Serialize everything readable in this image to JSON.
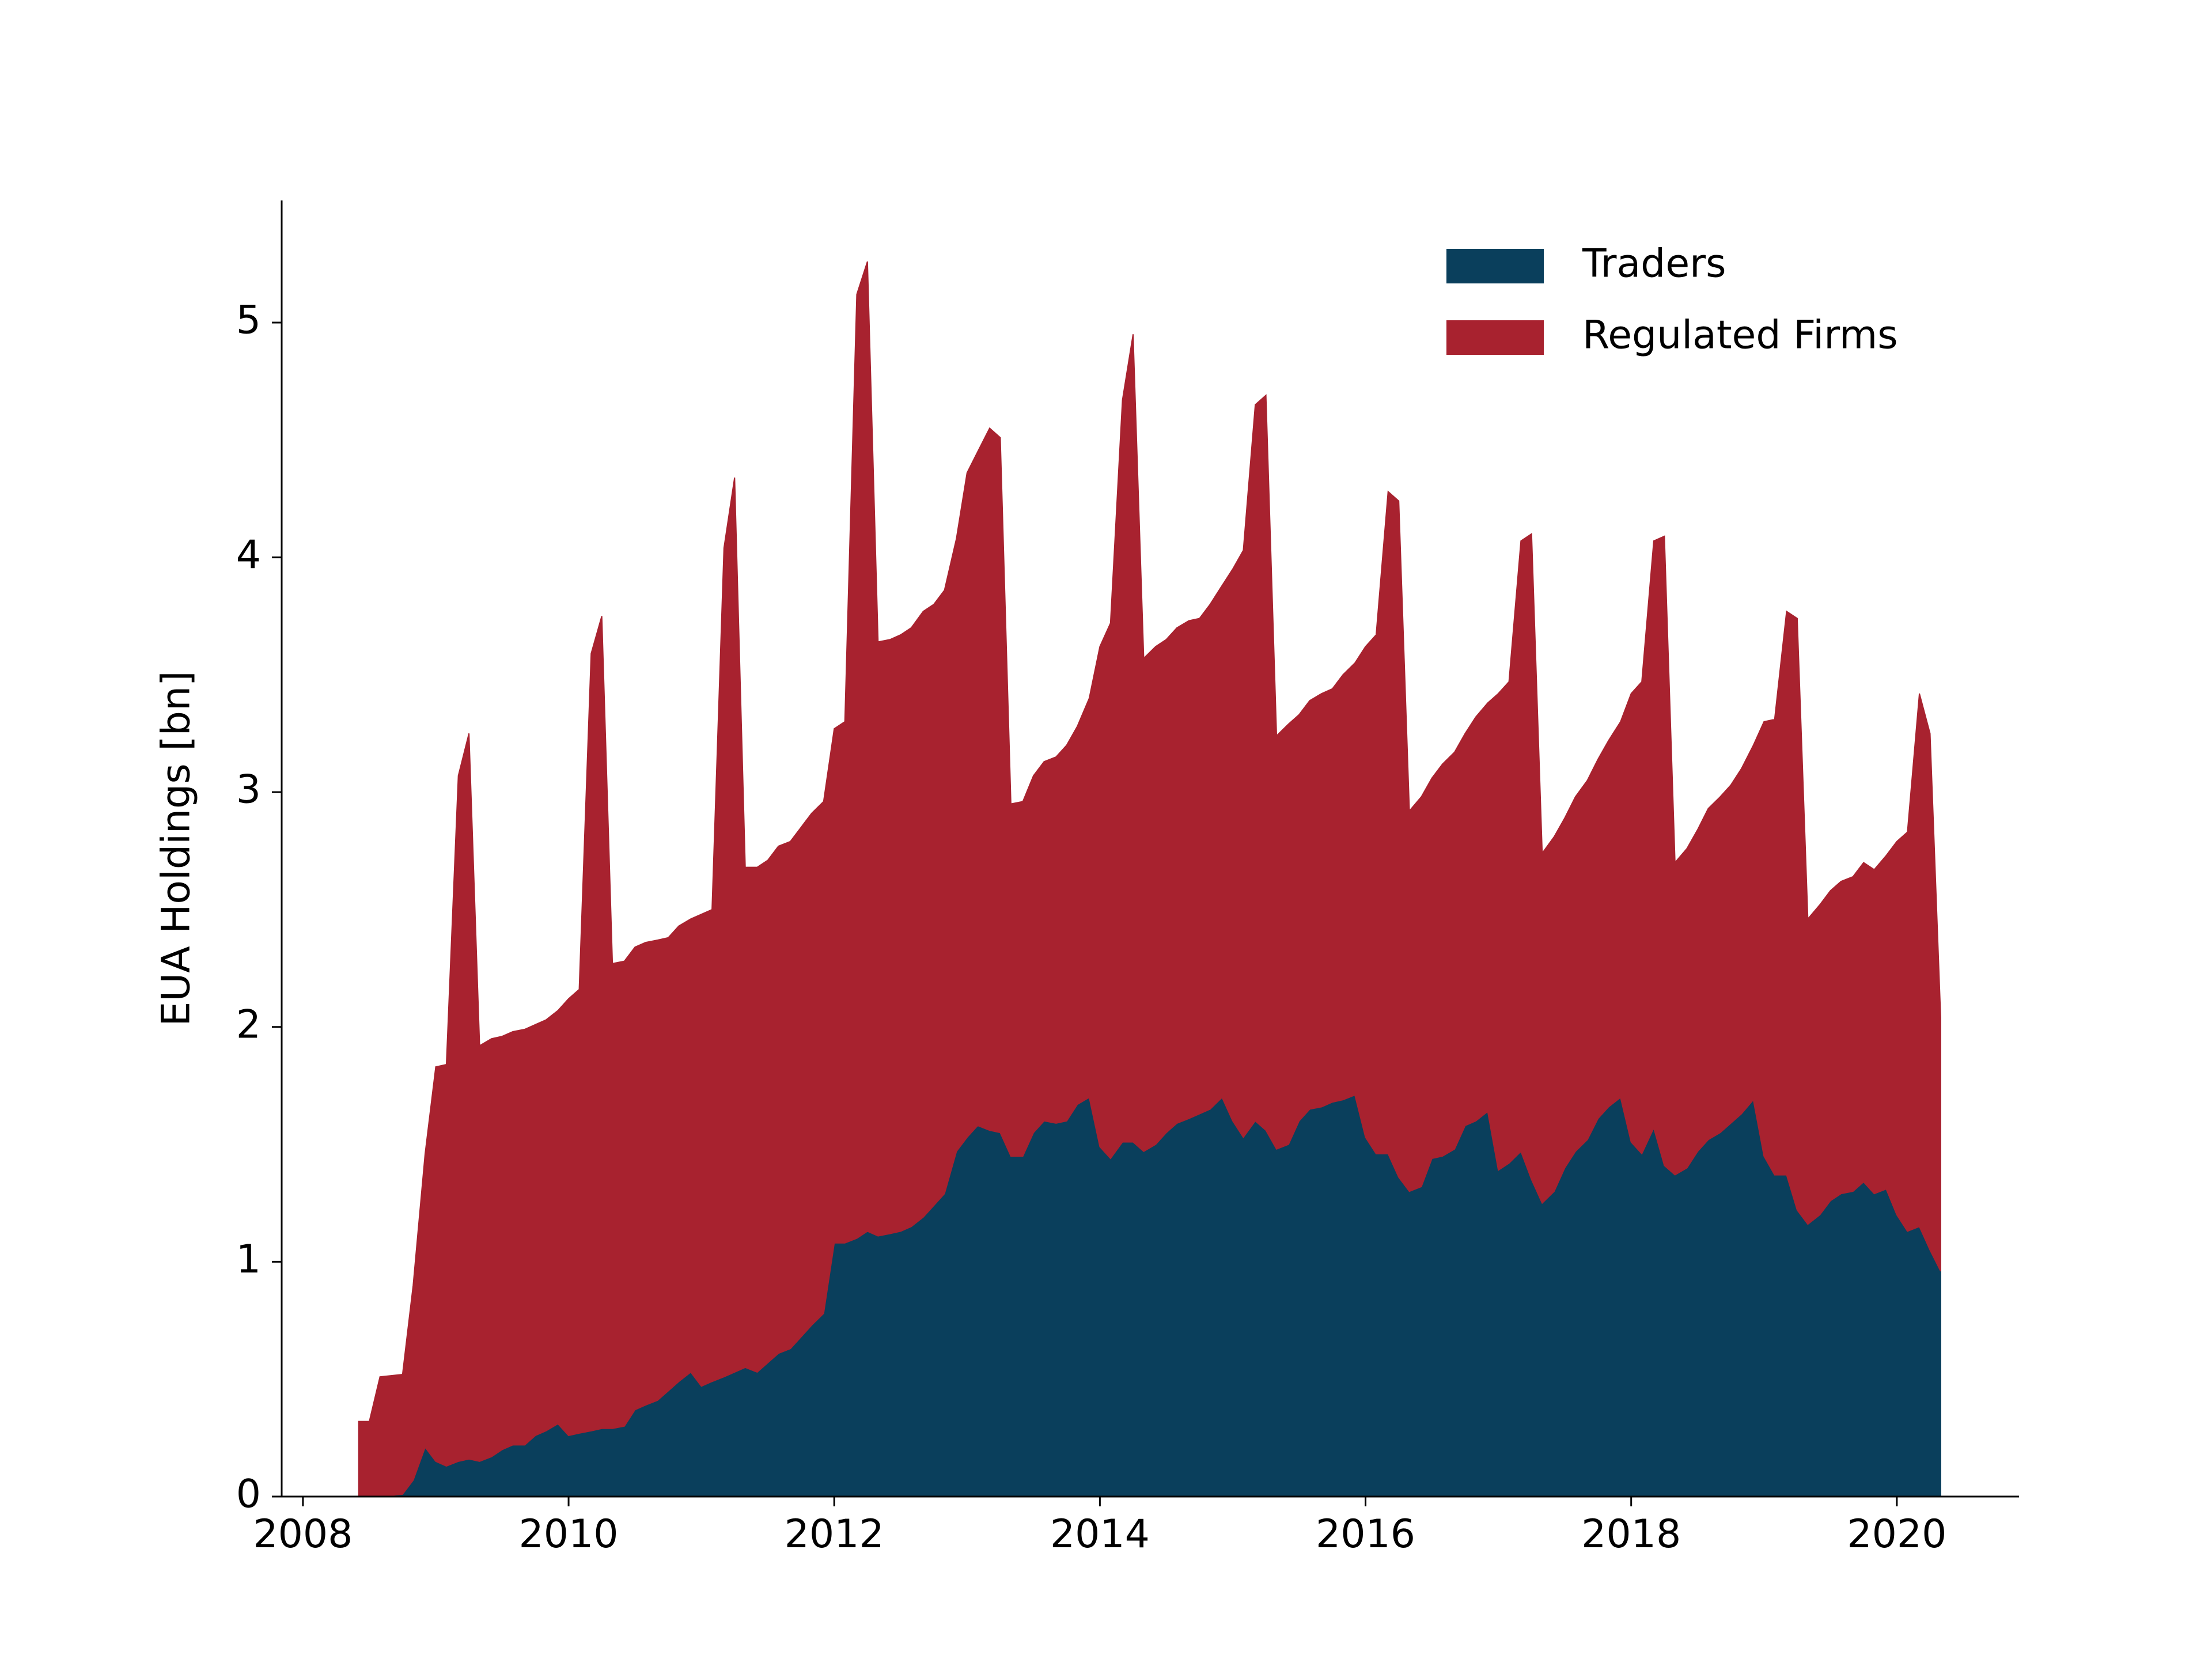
{
  "chart_data": {
    "type": "stackplot",
    "ylabel": "EUA Holdings [bn]",
    "x": [
      2008.42,
      2008.5,
      2008.58,
      2008.75,
      2008.83,
      2008.92,
      2009.0,
      2009.08,
      2009.17,
      2009.25,
      2009.33,
      2009.42,
      2009.5,
      2009.58,
      2009.67,
      2009.75,
      2009.83,
      2009.92,
      2010.0,
      2010.08,
      2010.17,
      2010.25,
      2010.33,
      2010.42,
      2010.5,
      2010.58,
      2010.67,
      2010.75,
      2010.83,
      2010.92,
      2011.0,
      2011.08,
      2011.17,
      2011.25,
      2011.33,
      2011.42,
      2011.5,
      2011.58,
      2011.67,
      2011.75,
      2011.83,
      2011.92,
      2012.0,
      2012.08,
      2012.17,
      2012.25,
      2012.33,
      2012.42,
      2012.5,
      2012.58,
      2012.67,
      2012.75,
      2012.83,
      2012.92,
      2013.0,
      2013.08,
      2013.17,
      2013.25,
      2013.33,
      2013.42,
      2013.5,
      2013.58,
      2013.67,
      2013.75,
      2013.83,
      2013.92,
      2014.0,
      2014.08,
      2014.17,
      2014.25,
      2014.33,
      2014.42,
      2014.5,
      2014.58,
      2014.67,
      2014.75,
      2014.83,
      2014.92,
      2015.0,
      2015.08,
      2015.17,
      2015.25,
      2015.33,
      2015.42,
      2015.5,
      2015.58,
      2015.67,
      2015.75,
      2015.83,
      2015.92,
      2016.0,
      2016.08,
      2016.17,
      2016.25,
      2016.33,
      2016.42,
      2016.5,
      2016.58,
      2016.67,
      2016.75,
      2016.83,
      2016.92,
      2017.0,
      2017.08,
      2017.17,
      2017.25,
      2017.33,
      2017.42,
      2017.5,
      2017.58,
      2017.67,
      2017.75,
      2017.83,
      2017.92,
      2018.0,
      2018.08,
      2018.17,
      2018.25,
      2018.33,
      2018.42,
      2018.5,
      2018.58,
      2018.67,
      2018.75,
      2018.83,
      2018.92,
      2019.0,
      2019.08,
      2019.17,
      2019.25,
      2019.33,
      2019.42,
      2019.5,
      2019.58,
      2019.67,
      2019.75,
      2019.83,
      2019.92,
      2020.0,
      2020.08,
      2020.17,
      2020.25,
      2020.33
    ],
    "series": [
      {
        "name": "Traders",
        "color": "#0a3f5c",
        "values": [
          0,
          0,
          0,
          0.01,
          0.07,
          0.21,
          0.15,
          0.13,
          0.15,
          0.16,
          0.15,
          0.17,
          0.2,
          0.22,
          0.22,
          0.26,
          0.28,
          0.31,
          0.26,
          0.27,
          0.28,
          0.29,
          0.29,
          0.3,
          0.37,
          0.39,
          0.41,
          0.45,
          0.49,
          0.53,
          0.47,
          0.49,
          0.51,
          0.53,
          0.55,
          0.53,
          0.57,
          0.61,
          0.63,
          0.68,
          0.73,
          0.78,
          1.08,
          1.08,
          1.1,
          1.13,
          1.11,
          1.12,
          1.13,
          1.15,
          1.19,
          1.24,
          1.29,
          1.47,
          1.53,
          1.58,
          1.56,
          1.55,
          1.45,
          1.45,
          1.55,
          1.6,
          1.59,
          1.6,
          1.67,
          1.7,
          1.49,
          1.44,
          1.51,
          1.51,
          1.47,
          1.5,
          1.55,
          1.59,
          1.61,
          1.63,
          1.65,
          1.7,
          1.6,
          1.53,
          1.6,
          1.56,
          1.48,
          1.5,
          1.6,
          1.65,
          1.66,
          1.68,
          1.69,
          1.71,
          1.53,
          1.46,
          1.46,
          1.36,
          1.3,
          1.32,
          1.44,
          1.45,
          1.48,
          1.58,
          1.6,
          1.64,
          1.39,
          1.42,
          1.47,
          1.35,
          1.25,
          1.3,
          1.4,
          1.47,
          1.52,
          1.61,
          1.66,
          1.7,
          1.51,
          1.46,
          1.57,
          1.41,
          1.37,
          1.4,
          1.47,
          1.52,
          1.55,
          1.59,
          1.63,
          1.69,
          1.45,
          1.37,
          1.37,
          1.22,
          1.16,
          1.2,
          1.26,
          1.29,
          1.3,
          1.34,
          1.29,
          1.31,
          1.2,
          1.13,
          1.15,
          1.05,
          0.96
        ]
      },
      {
        "name": "Regulated Firms",
        "color": "#a8222f",
        "values": [
          0.32,
          0.32,
          0.51,
          0.51,
          0.83,
          1.25,
          1.68,
          1.71,
          2.92,
          3.09,
          1.77,
          1.78,
          1.76,
          1.76,
          1.77,
          1.75,
          1.75,
          1.76,
          1.86,
          1.89,
          3.31,
          3.46,
          1.98,
          1.98,
          1.97,
          1.97,
          1.96,
          1.93,
          1.94,
          1.93,
          2.01,
          2.01,
          3.53,
          3.81,
          2.13,
          2.15,
          2.14,
          2.16,
          2.16,
          2.17,
          2.18,
          2.18,
          2.19,
          2.22,
          4.02,
          4.13,
          2.53,
          2.53,
          2.54,
          2.55,
          2.58,
          2.56,
          2.57,
          2.61,
          2.83,
          2.87,
          2.99,
          2.96,
          1.5,
          1.51,
          1.52,
          1.53,
          1.56,
          1.6,
          1.61,
          1.7,
          2.13,
          2.28,
          3.16,
          3.44,
          2.1,
          2.12,
          2.1,
          2.11,
          2.12,
          2.11,
          2.15,
          2.18,
          2.35,
          2.5,
          3.05,
          3.13,
          1.76,
          1.79,
          1.73,
          1.74,
          1.76,
          1.76,
          1.81,
          1.84,
          2.09,
          2.21,
          2.82,
          2.88,
          1.62,
          1.66,
          1.62,
          1.67,
          1.69,
          1.67,
          1.72,
          1.74,
          2.03,
          2.05,
          2.6,
          2.75,
          1.49,
          1.51,
          1.49,
          1.51,
          1.53,
          1.53,
          1.56,
          1.6,
          1.91,
          2.01,
          2.5,
          2.68,
          1.33,
          1.36,
          1.37,
          1.41,
          1.43,
          1.44,
          1.47,
          1.51,
          1.85,
          1.94,
          2.4,
          2.52,
          1.3,
          1.32,
          1.32,
          1.33,
          1.34,
          1.36,
          1.38,
          1.42,
          1.59,
          1.7,
          2.27,
          2.2,
          1.08
        ]
      }
    ],
    "xlim": [
      2007.84,
      2020.92
    ],
    "xticks": [
      2008,
      2010,
      2012,
      2014,
      2016,
      2018,
      2020
    ],
    "ylim": [
      0,
      5.52
    ],
    "yticks": [
      0,
      1,
      2,
      3,
      4,
      5
    ],
    "legend": "upper right"
  }
}
